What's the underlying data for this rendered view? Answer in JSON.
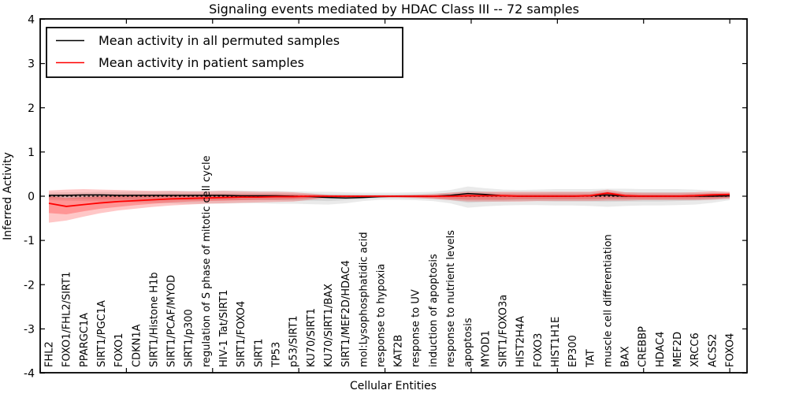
{
  "chart_data": {
    "type": "line",
    "title": "Signaling events mediated by HDAC Class III -- 72 samples",
    "xlabel": "Cellular Entities",
    "ylabel": "Inferred Activity",
    "ylim": [
      -4,
      4
    ],
    "xlim": [
      0,
      41
    ],
    "grid": false,
    "legend_position": "upper left",
    "yticks": {
      "values": [
        4,
        3,
        2,
        1,
        0,
        -1,
        -2,
        -3,
        -4
      ],
      "labels": [
        "4",
        "3",
        "2",
        "1",
        "0",
        "-1",
        "-2",
        "-3",
        "-4"
      ]
    },
    "xticks": [
      0,
      5,
      10,
      15,
      20,
      25,
      30,
      35,
      40
    ],
    "zero_line": {
      "style": "dashed",
      "color": "#000000",
      "y": 0
    },
    "categories": [
      "FHL2",
      "FOXO1/FHL2/SIRT1",
      "PPARGC1A",
      "SIRT1/PGC1A",
      "FOXO1",
      "CDKN1A",
      "SIRT1/Histone H1b",
      "SIRT1/PCAF/MYOD",
      "SIRT1/p300",
      "regulation of S phase of mitotic cell cycle",
      "HIV-1 Tat/SIRT1",
      "SIRT1/FOXO4",
      "SIRT1",
      "TP53",
      "p53/SIRT1",
      "KU70/SIRT1",
      "KU70/SIRT1/BAX",
      "SIRT1/MEF2D/HDAC4",
      "mol:Lysophosphatidic acid",
      "response to hypoxia",
      "KAT2B",
      "response to UV",
      "induction of apoptosis",
      "response to nutrient levels",
      "apoptosis",
      "MYOD1",
      "SIRT1/FOXO3a",
      "HIST2H4A",
      "FOXO3",
      "HIST1H1E",
      "EP300",
      "TAT",
      "muscle cell differentiation",
      "BAX",
      "CREBBP",
      "HDAC4",
      "MEF2D",
      "XRCC6",
      "ACSS2",
      "FOXO4"
    ],
    "series": [
      {
        "name": "Mean activity in all permuted samples",
        "color": "#000000",
        "values": [
          0.02,
          0.02,
          0.03,
          0.03,
          0.02,
          0.02,
          0.02,
          0.02,
          0.02,
          0.02,
          0.02,
          0.01,
          0.01,
          0.01,
          0.0,
          -0.01,
          -0.03,
          -0.04,
          -0.03,
          -0.01,
          0.0,
          0.0,
          0.0,
          0.02,
          0.06,
          0.04,
          0.01,
          0.0,
          0.0,
          0.0,
          0.0,
          0.01,
          0.03,
          0.0,
          0.0,
          0.0,
          0.0,
          0.0,
          0.0,
          0.01
        ]
      },
      {
        "name": "Mean activity in patient samples",
        "color": "#ff0000",
        "values": [
          -0.16,
          -0.23,
          -0.19,
          -0.15,
          -0.12,
          -0.1,
          -0.08,
          -0.06,
          -0.05,
          -0.04,
          -0.03,
          -0.02,
          -0.02,
          -0.01,
          -0.01,
          0.0,
          0.0,
          0.0,
          0.0,
          0.0,
          0.0,
          0.0,
          0.0,
          0.0,
          0.01,
          0.01,
          0.01,
          0.0,
          0.0,
          0.0,
          0.0,
          0.01,
          0.07,
          0.01,
          0.0,
          0.0,
          0.0,
          0.01,
          0.03,
          0.04
        ]
      }
    ],
    "bands": [
      {
        "name": "permuted-outer-band",
        "color": "rgba(90,90,90,0.13)",
        "upper": [
          0.08,
          0.09,
          0.09,
          0.1,
          0.1,
          0.11,
          0.11,
          0.12,
          0.12,
          0.12,
          0.13,
          0.13,
          0.12,
          0.12,
          0.11,
          0.1,
          0.1,
          0.09,
          0.08,
          0.08,
          0.08,
          0.09,
          0.1,
          0.14,
          0.22,
          0.18,
          0.15,
          0.14,
          0.15,
          0.16,
          0.16,
          0.16,
          0.17,
          0.17,
          0.16,
          0.16,
          0.16,
          0.15,
          0.13,
          0.09
        ],
        "lower": [
          -0.09,
          -0.1,
          -0.11,
          -0.12,
          -0.13,
          -0.14,
          -0.15,
          -0.16,
          -0.17,
          -0.17,
          -0.17,
          -0.16,
          -0.16,
          -0.17,
          -0.17,
          -0.18,
          -0.19,
          -0.16,
          -0.11,
          -0.08,
          -0.08,
          -0.09,
          -0.11,
          -0.16,
          -0.26,
          -0.23,
          -0.21,
          -0.2,
          -0.2,
          -0.21,
          -0.21,
          -0.22,
          -0.24,
          -0.22,
          -0.21,
          -0.21,
          -0.2,
          -0.19,
          -0.15,
          -0.09
        ]
      },
      {
        "name": "permuted-inner-band",
        "color": "rgba(90,90,90,0.13)",
        "upper": [
          0.04,
          0.05,
          0.05,
          0.05,
          0.06,
          0.06,
          0.06,
          0.07,
          0.07,
          0.07,
          0.07,
          0.07,
          0.07,
          0.07,
          0.06,
          0.06,
          0.05,
          0.05,
          0.04,
          0.04,
          0.04,
          0.05,
          0.06,
          0.08,
          0.13,
          0.1,
          0.08,
          0.08,
          0.08,
          0.09,
          0.09,
          0.09,
          0.1,
          0.09,
          0.09,
          0.09,
          0.09,
          0.08,
          0.07,
          0.05
        ],
        "lower": [
          -0.05,
          -0.05,
          -0.06,
          -0.07,
          -0.07,
          -0.08,
          -0.08,
          -0.09,
          -0.09,
          -0.09,
          -0.09,
          -0.09,
          -0.09,
          -0.09,
          -0.1,
          -0.1,
          -0.11,
          -0.09,
          -0.06,
          -0.04,
          -0.04,
          -0.05,
          -0.06,
          -0.09,
          -0.15,
          -0.13,
          -0.12,
          -0.11,
          -0.11,
          -0.12,
          -0.12,
          -0.12,
          -0.13,
          -0.12,
          -0.12,
          -0.12,
          -0.11,
          -0.1,
          -0.08,
          -0.05
        ]
      },
      {
        "name": "patient-outer-band",
        "color": "rgba(255,0,0,0.22)",
        "upper": [
          0.13,
          0.15,
          0.16,
          0.15,
          0.14,
          0.13,
          0.12,
          0.12,
          0.11,
          0.11,
          0.12,
          0.11,
          0.1,
          0.1,
          0.09,
          0.06,
          0.03,
          0.02,
          0.02,
          0.02,
          0.02,
          0.03,
          0.05,
          0.08,
          0.1,
          0.1,
          0.1,
          0.1,
          0.1,
          0.1,
          0.1,
          0.1,
          0.15,
          0.09,
          0.08,
          0.08,
          0.08,
          0.09,
          0.11,
          0.1
        ],
        "lower": [
          -0.6,
          -0.55,
          -0.46,
          -0.38,
          -0.32,
          -0.28,
          -0.24,
          -0.21,
          -0.19,
          -0.17,
          -0.16,
          -0.15,
          -0.14,
          -0.13,
          -0.12,
          -0.08,
          -0.04,
          -0.03,
          -0.03,
          -0.03,
          -0.03,
          -0.04,
          -0.06,
          -0.09,
          -0.12,
          -0.12,
          -0.12,
          -0.12,
          -0.11,
          -0.11,
          -0.11,
          -0.11,
          -0.1,
          -0.1,
          -0.09,
          -0.09,
          -0.09,
          -0.09,
          -0.08,
          -0.06
        ]
      },
      {
        "name": "patient-inner-band",
        "color": "rgba(255,0,0,0.25)",
        "upper": [
          0.0,
          -0.04,
          -0.02,
          0.0,
          0.01,
          0.02,
          0.02,
          0.03,
          0.03,
          0.04,
          0.04,
          0.04,
          0.04,
          0.04,
          0.04,
          0.03,
          0.02,
          0.01,
          0.01,
          0.01,
          0.01,
          0.02,
          0.02,
          0.03,
          0.05,
          0.05,
          0.05,
          0.05,
          0.05,
          0.05,
          0.05,
          0.05,
          0.1,
          0.05,
          0.04,
          0.04,
          0.04,
          0.05,
          0.06,
          0.07
        ],
        "lower": [
          -0.38,
          -0.41,
          -0.34,
          -0.28,
          -0.24,
          -0.2,
          -0.17,
          -0.14,
          -0.12,
          -0.11,
          -0.1,
          -0.09,
          -0.08,
          -0.08,
          -0.07,
          -0.05,
          -0.02,
          -0.02,
          -0.02,
          -0.02,
          -0.02,
          -0.03,
          -0.04,
          -0.06,
          -0.08,
          -0.08,
          -0.08,
          -0.07,
          -0.07,
          -0.07,
          -0.07,
          -0.07,
          -0.06,
          -0.06,
          -0.06,
          -0.06,
          -0.06,
          -0.06,
          -0.05,
          -0.03
        ]
      }
    ]
  }
}
